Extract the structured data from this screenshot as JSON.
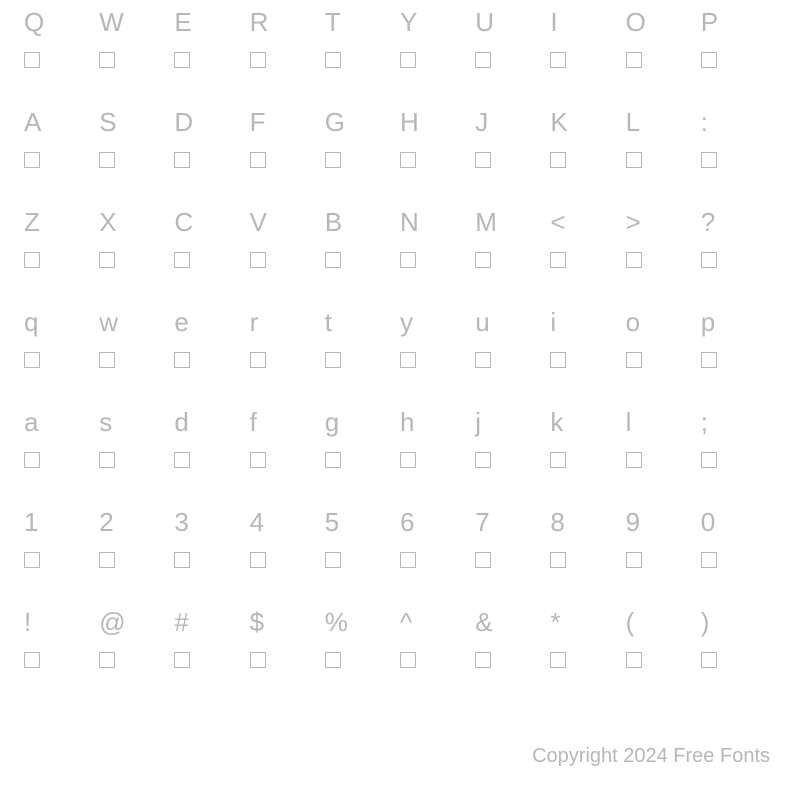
{
  "grid": {
    "type": "table",
    "background_color": "#ffffff",
    "text_color": "#b7b7b7",
    "box_border_color": "#b7b7b7",
    "glyph_fontsize": 26,
    "box_size": 16,
    "columns": 10,
    "rows": [
      [
        "Q",
        "W",
        "E",
        "R",
        "T",
        "Y",
        "U",
        "I",
        "O",
        "P"
      ],
      [
        "A",
        "S",
        "D",
        "F",
        "G",
        "H",
        "J",
        "K",
        "L",
        ":"
      ],
      [
        "Z",
        "X",
        "C",
        "V",
        "B",
        "N",
        "M",
        "<",
        ">",
        "?"
      ],
      [
        "q",
        "w",
        "e",
        "r",
        "t",
        "y",
        "u",
        "i",
        "o",
        "p"
      ],
      [
        "a",
        "s",
        "d",
        "f",
        "g",
        "h",
        "j",
        "k",
        "l",
        ";"
      ],
      [
        "1",
        "2",
        "3",
        "4",
        "5",
        "6",
        "7",
        "8",
        "9",
        "0"
      ],
      [
        "!",
        "@",
        "#",
        "$",
        "%",
        "^",
        "&",
        "*",
        "(",
        ")"
      ]
    ]
  },
  "footer": {
    "text": "Copyright 2024 Free Fonts",
    "text_color": "#b7b7b7",
    "fontsize": 20
  }
}
